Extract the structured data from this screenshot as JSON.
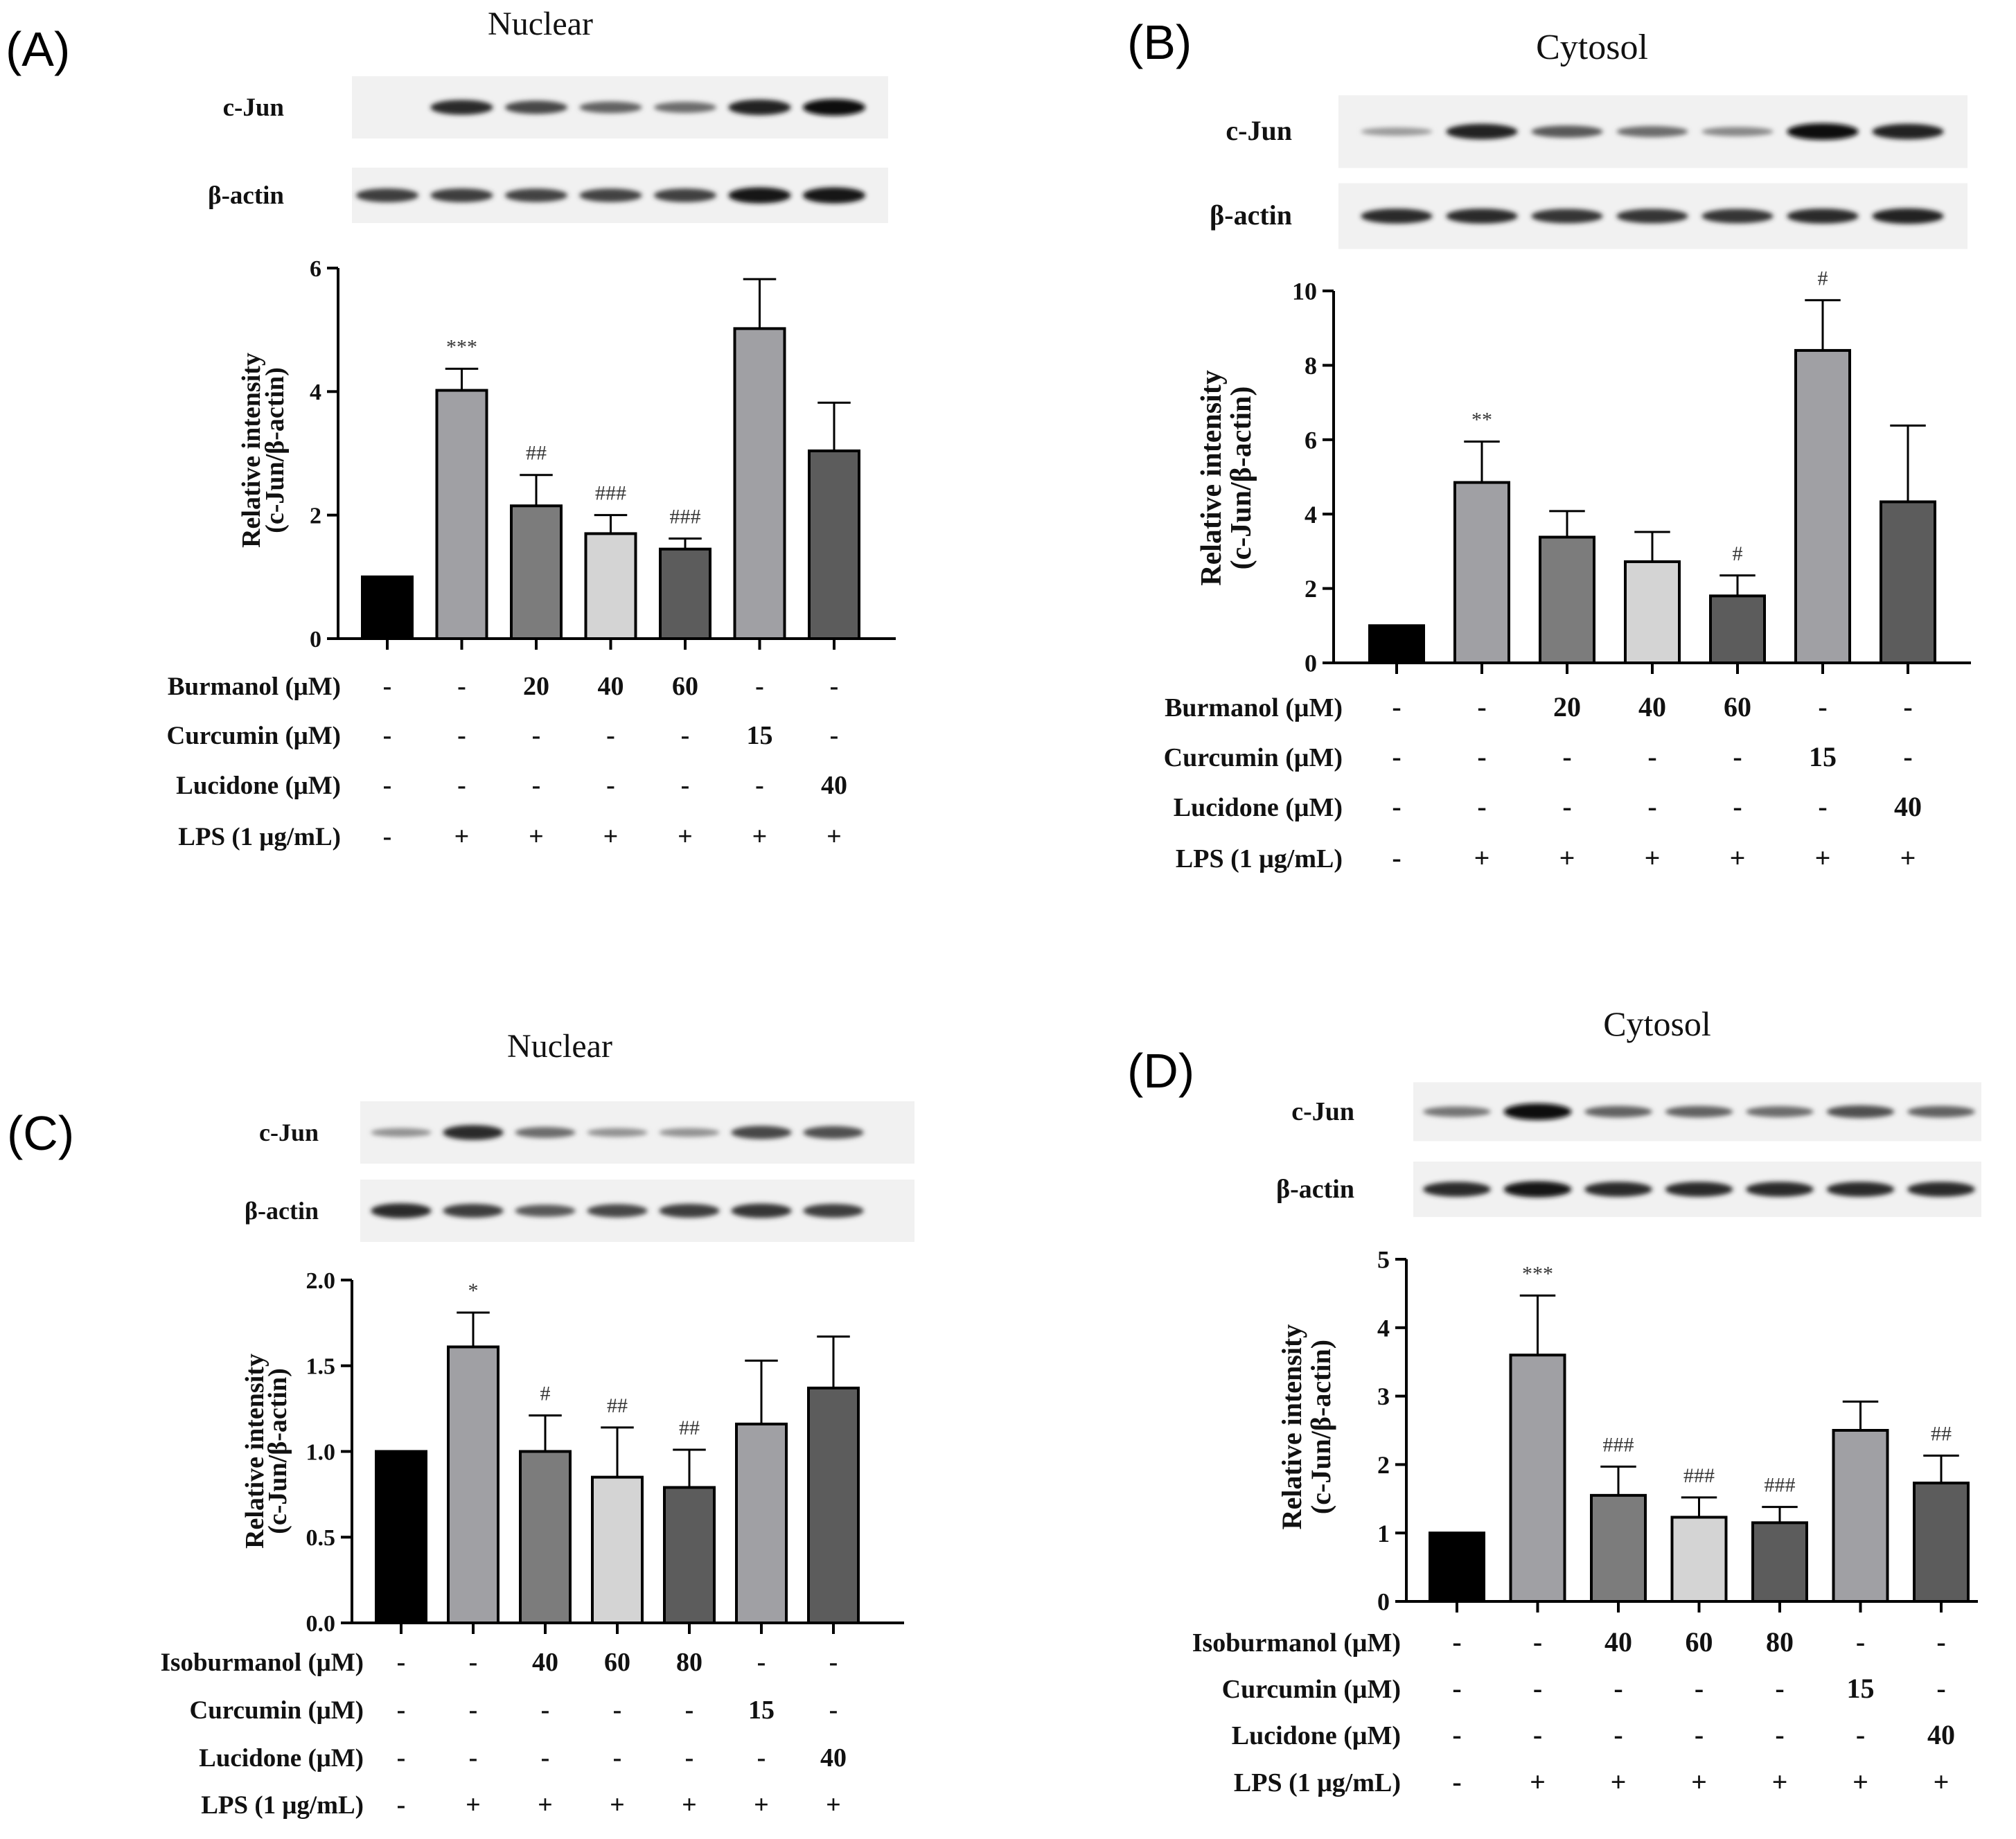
{
  "chart_data": [
    {
      "type": "bar",
      "panel_label": "(A)",
      "title": "Nuclear",
      "blot_labels": [
        "c-Jun",
        "β-actin"
      ],
      "blot_intensities": {
        "c-Jun": [
          0.0,
          0.85,
          0.7,
          0.55,
          0.5,
          0.9,
          1.0
        ],
        "β-actin": [
          0.75,
          0.75,
          0.72,
          0.72,
          0.74,
          0.95,
          0.95
        ]
      },
      "ylabel_lines": [
        "Relative intensity",
        "(c-Jun/β-actin)"
      ],
      "ylim": [
        0,
        6
      ],
      "yticks": [
        0,
        2,
        4,
        6
      ],
      "ytick_labels": [
        "0",
        "2",
        "4",
        "6"
      ],
      "values": [
        1.0,
        4.02,
        2.15,
        1.7,
        1.45,
        5.02,
        3.04
      ],
      "errors": [
        0,
        0.35,
        0.5,
        0.3,
        0.17,
        0.8,
        0.78
      ],
      "bar_colors": [
        "#000000",
        "#a0a0a4",
        "#7c7c7c",
        "#d4d4d4",
        "#5c5c5c",
        "#a0a0a4",
        "#5c5c5c"
      ],
      "annotations": [
        "",
        "***",
        "##",
        "###",
        "###",
        "",
        ""
      ],
      "treatments": [
        {
          "label": "Burmanol (μM)",
          "values": [
            "-",
            "-",
            "20",
            "40",
            "60",
            "-",
            "-"
          ]
        },
        {
          "label": "Curcumin (μM)",
          "values": [
            "-",
            "-",
            "-",
            "-",
            "-",
            "15",
            "-"
          ]
        },
        {
          "label": "Lucidone (μM)",
          "values": [
            "-",
            "-",
            "-",
            "-",
            "-",
            "-",
            "40"
          ]
        },
        {
          "label": "LPS (1 μg/mL)",
          "values": [
            "-",
            "+",
            "+",
            "+",
            "+",
            "+",
            "+"
          ]
        }
      ]
    },
    {
      "type": "bar",
      "panel_label": "(B)",
      "title": "Cytosol",
      "blot_labels": [
        "c-Jun",
        "β-actin"
      ],
      "blot_intensities": {
        "c-Jun": [
          0.25,
          0.9,
          0.6,
          0.5,
          0.35,
          1.0,
          0.9
        ],
        "β-actin": [
          0.85,
          0.85,
          0.8,
          0.8,
          0.8,
          0.85,
          0.9
        ]
      },
      "ylabel_lines": [
        "Relative intensity",
        "(c-Jun/β-actin)"
      ],
      "ylim": [
        0,
        10
      ],
      "yticks": [
        0,
        2,
        4,
        6,
        8,
        10
      ],
      "ytick_labels": [
        "0",
        "2",
        "4",
        "6",
        "8",
        "10"
      ],
      "values": [
        1.0,
        4.85,
        3.38,
        2.72,
        1.8,
        8.4,
        4.33
      ],
      "errors": [
        0,
        1.1,
        0.7,
        0.8,
        0.55,
        1.35,
        2.05
      ],
      "bar_colors": [
        "#000000",
        "#a0a0a4",
        "#7c7c7c",
        "#d4d4d4",
        "#5c5c5c",
        "#a0a0a4",
        "#5c5c5c"
      ],
      "annotations": [
        "",
        "**",
        "",
        "",
        "#",
        "#",
        ""
      ],
      "treatments": [
        {
          "label": "Burmanol (μM)",
          "values": [
            "-",
            "-",
            "20",
            "40",
            "60",
            "-",
            "-"
          ]
        },
        {
          "label": "Curcumin (μM)",
          "values": [
            "-",
            "-",
            "-",
            "-",
            "-",
            "15",
            "-"
          ]
        },
        {
          "label": "Lucidone (μM)",
          "values": [
            "-",
            "-",
            "-",
            "-",
            "-",
            "-",
            "40"
          ]
        },
        {
          "label": "LPS (1 μg/mL)",
          "values": [
            "-",
            "+",
            "+",
            "+",
            "+",
            "+",
            "+"
          ]
        }
      ]
    },
    {
      "type": "bar",
      "panel_label": "(C)",
      "title": "Nuclear",
      "blot_labels": [
        "c-Jun",
        "β-actin"
      ],
      "blot_intensities": {
        "c-Jun": [
          0.3,
          0.85,
          0.5,
          0.3,
          0.3,
          0.7,
          0.65
        ],
        "β-actin": [
          0.85,
          0.75,
          0.6,
          0.7,
          0.75,
          0.8,
          0.75
        ]
      },
      "ylabel_lines": [
        "Relative intensity",
        "(c-Jun/β-actin)"
      ],
      "ylim": [
        0,
        2
      ],
      "yticks": [
        0,
        0.5,
        1.0,
        1.5,
        2.0
      ],
      "ytick_labels": [
        "0.0",
        "0.5",
        "1.0",
        "1.5",
        "2.0"
      ],
      "values": [
        1.0,
        1.61,
        1.0,
        0.85,
        0.79,
        1.16,
        1.37
      ],
      "errors": [
        0,
        0.2,
        0.21,
        0.29,
        0.22,
        0.37,
        0.3
      ],
      "bar_colors": [
        "#000000",
        "#a0a0a4",
        "#7c7c7c",
        "#d4d4d4",
        "#5c5c5c",
        "#a0a0a4",
        "#5c5c5c"
      ],
      "annotations": [
        "",
        "*",
        "#",
        "##",
        "##",
        "",
        ""
      ],
      "treatments": [
        {
          "label": "Isoburmanol (μM)",
          "values": [
            "-",
            "-",
            "40",
            "60",
            "80",
            "-",
            "-"
          ]
        },
        {
          "label": "Curcumin (μM)",
          "values": [
            "-",
            "-",
            "-",
            "-",
            "-",
            "15",
            "-"
          ]
        },
        {
          "label": "Lucidone (μM)",
          "values": [
            "-",
            "-",
            "-",
            "-",
            "-",
            "-",
            "40"
          ]
        },
        {
          "label": "LPS (1 μg/mL)",
          "values": [
            "-",
            "+",
            "+",
            "+",
            "+",
            "+",
            "+"
          ]
        }
      ]
    },
    {
      "type": "bar",
      "panel_label": "(D)",
      "title": "Cytosol",
      "blot_labels": [
        "c-Jun",
        "β-actin"
      ],
      "blot_intensities": {
        "c-Jun": [
          0.45,
          1.0,
          0.55,
          0.55,
          0.5,
          0.65,
          0.55
        ],
        "β-actin": [
          0.85,
          0.95,
          0.85,
          0.85,
          0.85,
          0.85,
          0.85
        ]
      },
      "ylabel_lines": [
        "Relative intensity",
        "(c-Jun/β-actin)"
      ],
      "ylim": [
        0,
        5
      ],
      "yticks": [
        0,
        1,
        2,
        3,
        4,
        5
      ],
      "ytick_labels": [
        "0",
        "1",
        "2",
        "3",
        "4",
        "5"
      ],
      "values": [
        1.0,
        3.6,
        1.55,
        1.23,
        1.15,
        2.5,
        1.73
      ],
      "errors": [
        0,
        0.87,
        0.42,
        0.29,
        0.23,
        0.42,
        0.4
      ],
      "bar_colors": [
        "#000000",
        "#a0a0a4",
        "#7c7c7c",
        "#d4d4d4",
        "#5c5c5c",
        "#a0a0a4",
        "#5c5c5c"
      ],
      "annotations": [
        "",
        "***",
        "###",
        "###",
        "###",
        "",
        "##"
      ],
      "treatments": [
        {
          "label": "Isoburmanol (μM)",
          "values": [
            "-",
            "-",
            "40",
            "60",
            "80",
            "-",
            "-"
          ]
        },
        {
          "label": "Curcumin (μM)",
          "values": [
            "-",
            "-",
            "-",
            "-",
            "-",
            "15",
            "-"
          ]
        },
        {
          "label": "Lucidone (μM)",
          "values": [
            "-",
            "-",
            "-",
            "-",
            "-",
            "-",
            "40"
          ]
        },
        {
          "label": "LPS (1 μg/mL)",
          "values": [
            "-",
            "+",
            "+",
            "+",
            "+",
            "+",
            "+"
          ]
        }
      ]
    }
  ]
}
